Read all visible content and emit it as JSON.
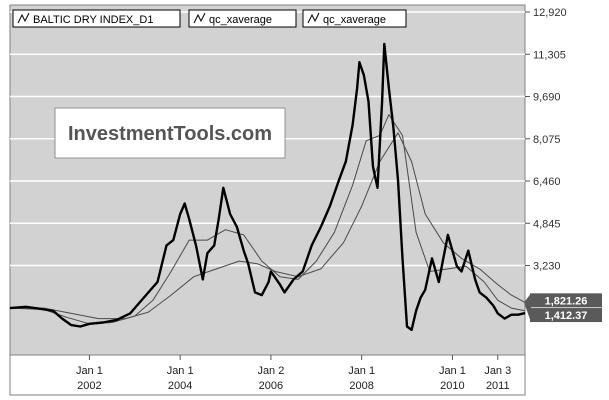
{
  "watermark": "InvestmentTools.com",
  "legend": [
    {
      "label": "BALTIC DRY INDEX_D1",
      "icon": "line-icon"
    },
    {
      "label": "qc_xaverage",
      "icon": "line-icon"
    },
    {
      "label": "qc_xaverage",
      "icon": "line-icon"
    }
  ],
  "value_badges": [
    {
      "text": "1,821.26",
      "value": 1821.26
    },
    {
      "text": "1,412.37",
      "value": 1412.37
    }
  ],
  "colors": {
    "background": "#d2d2d2",
    "price_line": "#000000",
    "ma_lines": "#4a4a4a",
    "grid": "#ffffff",
    "badge": "#5a5a5a"
  },
  "chart_data": {
    "type": "line",
    "title": "",
    "xlabel": "",
    "ylabel": "",
    "ylim": [
      0,
      12920
    ],
    "y_ticks": [
      {
        "label": "12,920",
        "value": 12920
      },
      {
        "label": "11,305",
        "value": 11305
      },
      {
        "label": "9,690",
        "value": 9690
      },
      {
        "label": "8,075",
        "value": 8075
      },
      {
        "label": "6,460",
        "value": 6460
      },
      {
        "label": "4,845",
        "value": 4845
      },
      {
        "label": "3,230",
        "value": 3230
      }
    ],
    "x_ticks": [
      {
        "top": "Jan 1",
        "bottom": "2002",
        "x": 2002.0
      },
      {
        "top": "Jan 1",
        "bottom": "2004",
        "x": 2004.0
      },
      {
        "top": "Jan 2",
        "bottom": "2006",
        "x": 2006.0
      },
      {
        "top": "Jan 1",
        "bottom": "2008",
        "x": 2008.0
      },
      {
        "top": "Jan 1",
        "bottom": "2010",
        "x": 2010.0
      },
      {
        "top": "Jan 3",
        "bottom": "2011",
        "x": 2011.0
      }
    ],
    "xlim": [
      2000.25,
      2011.6
    ],
    "series": [
      {
        "name": "BALTIC DRY INDEX_D1",
        "points": [
          [
            2000.25,
            1600
          ],
          [
            2000.6,
            1650
          ],
          [
            2000.9,
            1580
          ],
          [
            2001.2,
            1500
          ],
          [
            2001.4,
            1200
          ],
          [
            2001.6,
            950
          ],
          [
            2001.8,
            900
          ],
          [
            2002.0,
            1000
          ],
          [
            2002.3,
            1050
          ],
          [
            2002.6,
            1150
          ],
          [
            2002.9,
            1400
          ],
          [
            2003.1,
            1800
          ],
          [
            2003.3,
            2200
          ],
          [
            2003.5,
            2600
          ],
          [
            2003.7,
            4000
          ],
          [
            2003.85,
            4200
          ],
          [
            2004.0,
            5200
          ],
          [
            2004.1,
            5600
          ],
          [
            2004.2,
            5000
          ],
          [
            2004.35,
            4000
          ],
          [
            2004.5,
            2700
          ],
          [
            2004.6,
            3700
          ],
          [
            2004.75,
            4000
          ],
          [
            2004.85,
            5000
          ],
          [
            2004.95,
            6200
          ],
          [
            2005.1,
            5200
          ],
          [
            2005.25,
            4700
          ],
          [
            2005.4,
            3800
          ],
          [
            2005.5,
            3300
          ],
          [
            2005.65,
            2200
          ],
          [
            2005.8,
            2100
          ],
          [
            2005.95,
            2600
          ],
          [
            2006.0,
            3000
          ],
          [
            2006.2,
            2500
          ],
          [
            2006.3,
            2200
          ],
          [
            2006.5,
            2700
          ],
          [
            2006.7,
            3000
          ],
          [
            2006.9,
            4000
          ],
          [
            2007.1,
            4700
          ],
          [
            2007.3,
            5500
          ],
          [
            2007.5,
            6500
          ],
          [
            2007.65,
            7200
          ],
          [
            2007.8,
            8600
          ],
          [
            2007.9,
            10000
          ],
          [
            2007.95,
            11000
          ],
          [
            2008.05,
            10500
          ],
          [
            2008.15,
            9500
          ],
          [
            2008.25,
            7000
          ],
          [
            2008.35,
            6200
          ],
          [
            2008.45,
            9500
          ],
          [
            2008.5,
            11700
          ],
          [
            2008.6,
            10000
          ],
          [
            2008.7,
            8500
          ],
          [
            2008.8,
            6500
          ],
          [
            2008.9,
            3500
          ],
          [
            2009.0,
            900
          ],
          [
            2009.1,
            770
          ],
          [
            2009.2,
            1500
          ],
          [
            2009.3,
            2000
          ],
          [
            2009.4,
            2300
          ],
          [
            2009.55,
            3500
          ],
          [
            2009.7,
            2600
          ],
          [
            2009.8,
            3500
          ],
          [
            2009.9,
            4400
          ],
          [
            2010.0,
            3800
          ],
          [
            2010.1,
            3200
          ],
          [
            2010.2,
            3000
          ],
          [
            2010.35,
            3800
          ],
          [
            2010.5,
            2700
          ],
          [
            2010.6,
            2200
          ],
          [
            2010.75,
            2000
          ],
          [
            2010.9,
            1700
          ],
          [
            2011.0,
            1400
          ],
          [
            2011.15,
            1200
          ],
          [
            2011.3,
            1350
          ],
          [
            2011.45,
            1350
          ],
          [
            2011.6,
            1412
          ]
        ]
      },
      {
        "name": "qc_xaverage",
        "points": [
          [
            2000.25,
            1600
          ],
          [
            2001.0,
            1550
          ],
          [
            2001.5,
            1250
          ],
          [
            2002.0,
            1000
          ],
          [
            2002.5,
            1050
          ],
          [
            2003.0,
            1300
          ],
          [
            2003.4,
            1900
          ],
          [
            2003.8,
            3000
          ],
          [
            2004.2,
            4200
          ],
          [
            2004.6,
            4200
          ],
          [
            2005.0,
            4600
          ],
          [
            2005.4,
            4400
          ],
          [
            2005.8,
            3400
          ],
          [
            2006.2,
            2800
          ],
          [
            2006.6,
            2700
          ],
          [
            2007.0,
            3400
          ],
          [
            2007.4,
            4500
          ],
          [
            2007.8,
            6300
          ],
          [
            2008.1,
            8000
          ],
          [
            2008.4,
            8200
          ],
          [
            2008.6,
            9000
          ],
          [
            2008.9,
            8200
          ],
          [
            2009.2,
            4500
          ],
          [
            2009.5,
            3000
          ],
          [
            2009.9,
            3100
          ],
          [
            2010.3,
            3200
          ],
          [
            2010.7,
            2600
          ],
          [
            2011.0,
            1900
          ],
          [
            2011.3,
            1600
          ],
          [
            2011.6,
            1500
          ]
        ]
      },
      {
        "name": "qc_xaverage",
        "points": [
          [
            2000.25,
            1600
          ],
          [
            2001.0,
            1600
          ],
          [
            2001.6,
            1400
          ],
          [
            2002.2,
            1200
          ],
          [
            2002.8,
            1200
          ],
          [
            2003.3,
            1450
          ],
          [
            2003.8,
            2100
          ],
          [
            2004.3,
            2800
          ],
          [
            2004.8,
            3100
          ],
          [
            2005.3,
            3400
          ],
          [
            2005.7,
            3300
          ],
          [
            2006.1,
            3000
          ],
          [
            2006.6,
            2800
          ],
          [
            2007.1,
            3100
          ],
          [
            2007.6,
            4100
          ],
          [
            2008.0,
            5500
          ],
          [
            2008.4,
            7200
          ],
          [
            2008.8,
            8300
          ],
          [
            2009.1,
            7200
          ],
          [
            2009.4,
            5200
          ],
          [
            2009.8,
            4100
          ],
          [
            2010.2,
            3500
          ],
          [
            2010.6,
            3100
          ],
          [
            2011.0,
            2500
          ],
          [
            2011.3,
            2100
          ],
          [
            2011.6,
            1821
          ]
        ]
      }
    ],
    "legend_position": "top-left",
    "grid": true
  }
}
